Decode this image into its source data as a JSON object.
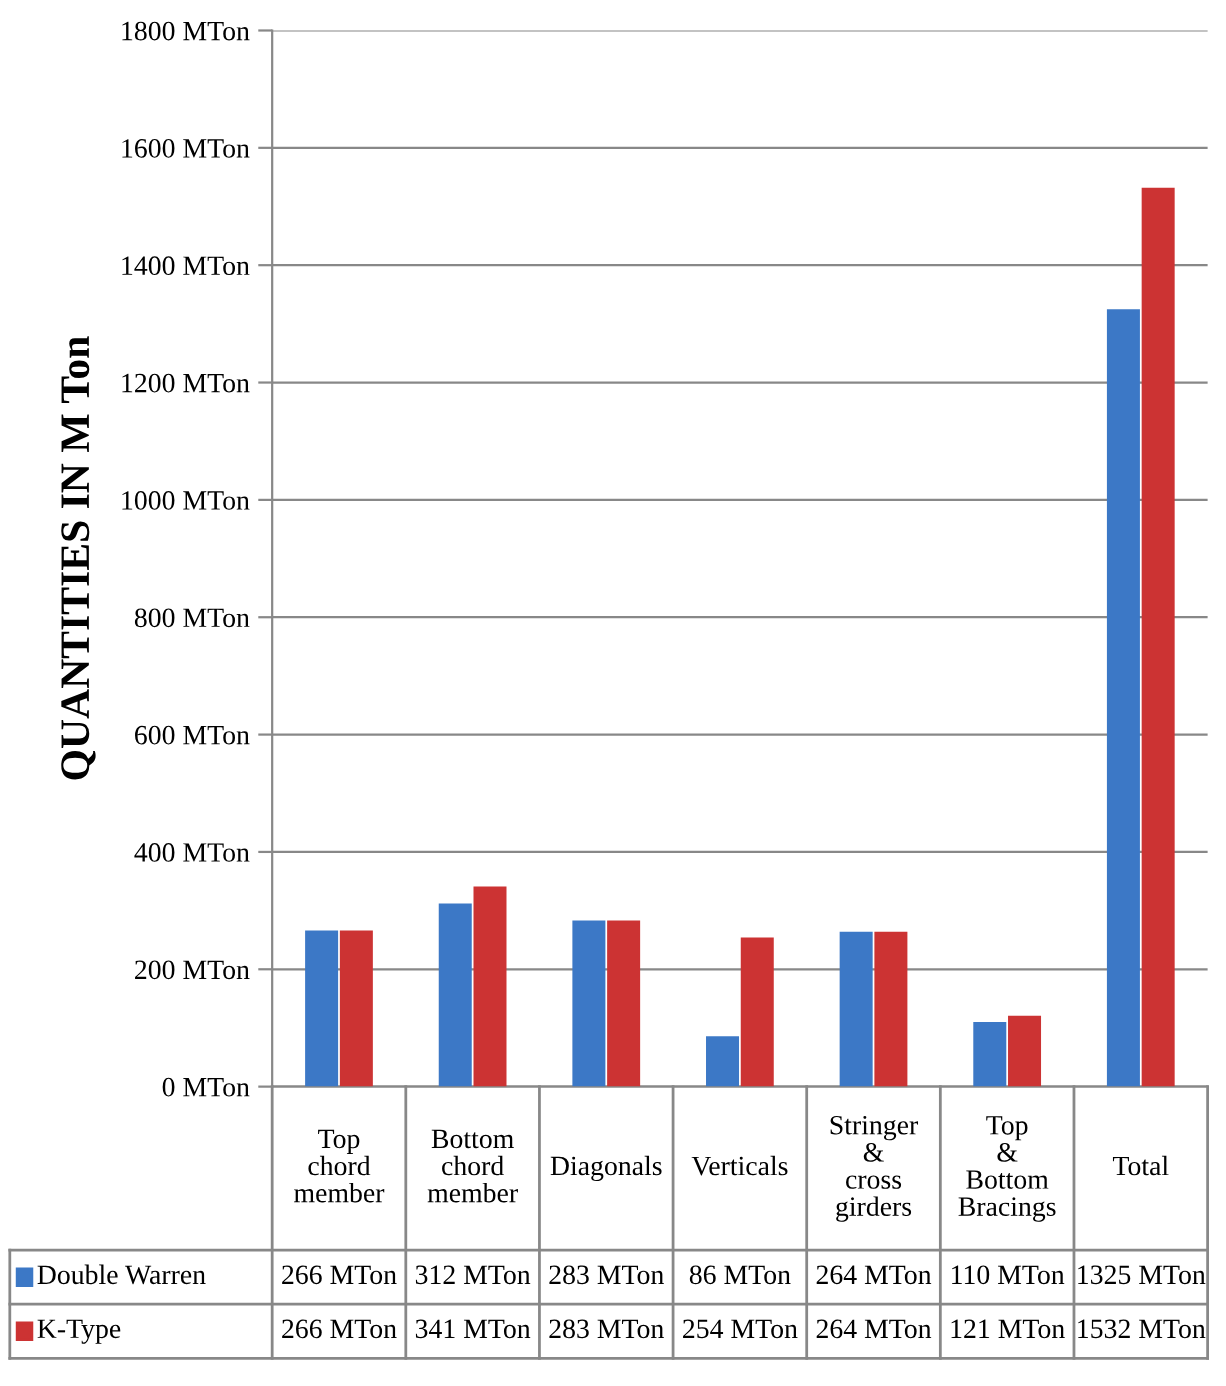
{
  "chart_data": {
    "type": "bar",
    "ylabel": "QUANTITIES IN M Ton",
    "categories": [
      "Top chord member",
      "Bottom chord member",
      "Diagonals",
      "Verticals",
      "Stringer & cross girders",
      "Top & Bottom Bracings",
      "Total"
    ],
    "series": [
      {
        "name": "Double Warren",
        "color": "#3c78c6",
        "values": [
          266,
          312,
          283,
          86,
          264,
          110,
          1325
        ],
        "value_labels": [
          "266 MTon",
          "312 MTon",
          "283 MTon",
          "86 MTon",
          "264 MTon",
          "110 MTon",
          "1325 MTon"
        ]
      },
      {
        "name": "K-Type",
        "color": "#cc3333",
        "values": [
          266,
          341,
          283,
          254,
          264,
          121,
          1532
        ],
        "value_labels": [
          "266 MTon",
          "341 MTon",
          "283 MTon",
          "254 MTon",
          "264 MTon",
          "121 MTon",
          "1532 MTon"
        ]
      }
    ],
    "ylim": [
      0,
      1800
    ],
    "yticks": [
      {
        "value": 0,
        "label": "0 MTon"
      },
      {
        "value": 200,
        "label": "200 MTon"
      },
      {
        "value": 400,
        "label": "400 MTon"
      },
      {
        "value": 600,
        "label": "600 MTon"
      },
      {
        "value": 800,
        "label": "800 MTon"
      },
      {
        "value": 1000,
        "label": "1000 MTon"
      },
      {
        "value": 1200,
        "label": "1200 MTon"
      },
      {
        "value": 1400,
        "label": "1400 MTon"
      },
      {
        "value": 1600,
        "label": "1600 MTon"
      },
      {
        "value": 1800,
        "label": "1800 MTon"
      }
    ],
    "grid": "y",
    "legend": "bottom"
  }
}
